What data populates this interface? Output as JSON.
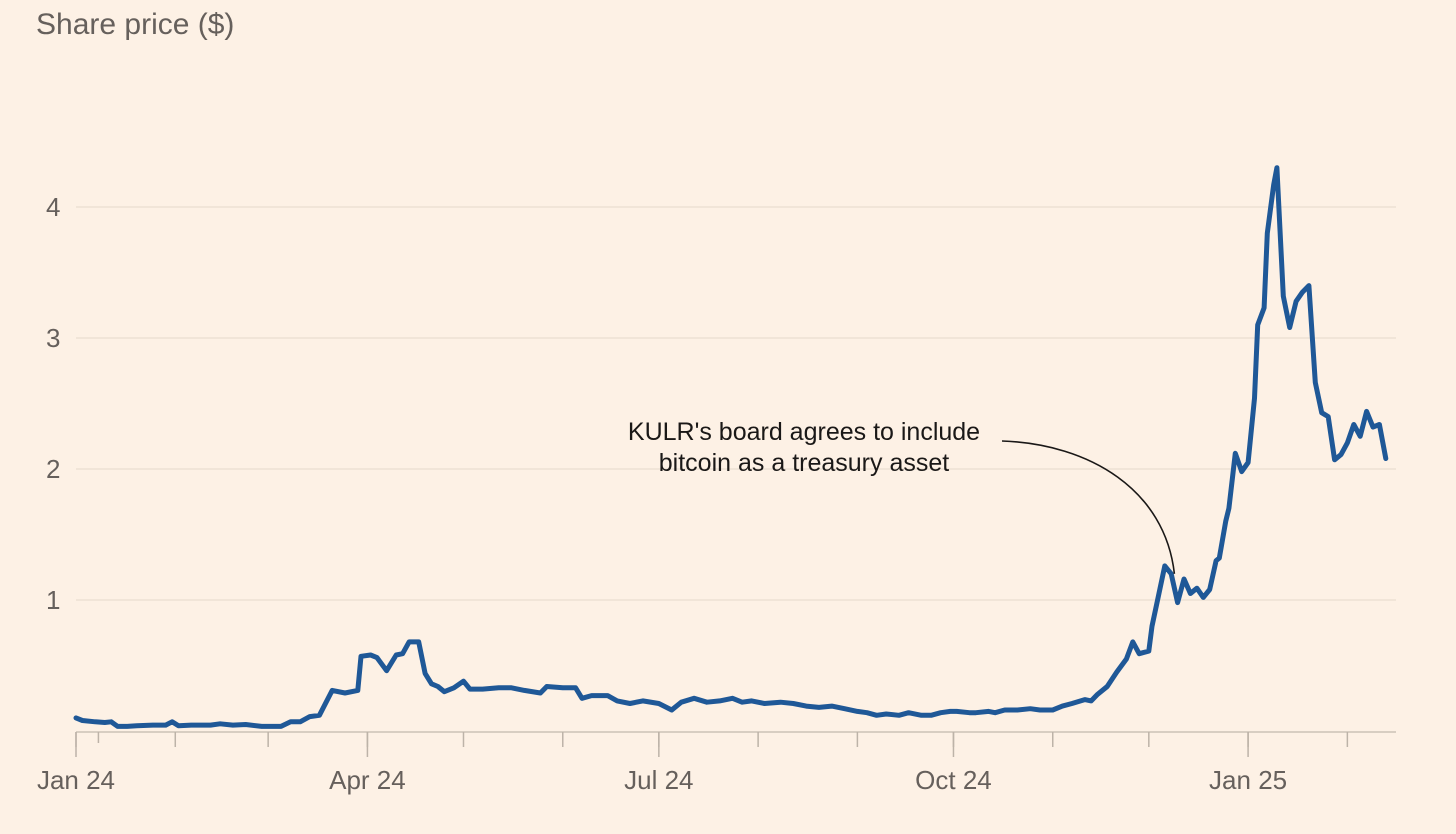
{
  "chart_data": {
    "type": "line",
    "title": "",
    "ylabel": "Share price ($)",
    "xlabel": "",
    "ylim": [
      0,
      4.75
    ],
    "yticks": [
      "1",
      "2",
      "3",
      "4"
    ],
    "ytick_values": [
      1,
      2,
      3,
      4
    ],
    "xlim": [
      "2024-01-01",
      "2025-02-14"
    ],
    "xtick_labels": [
      {
        "date": "2024-01-01",
        "label": "Jan 24"
      },
      {
        "date": "2024-04-01",
        "label": "Apr 24"
      },
      {
        "date": "2024-07-01",
        "label": "Jul 24"
      },
      {
        "date": "2024-10-01",
        "label": "Oct 24"
      },
      {
        "date": "2025-01-01",
        "label": "Jan 25"
      }
    ],
    "grid": true,
    "series": [
      {
        "name": "",
        "color": "#1f5897",
        "points": [
          [
            "2024-01-01",
            0.1
          ],
          [
            "2024-01-03",
            0.08
          ],
          [
            "2024-01-07",
            0.07
          ],
          [
            "2024-01-10",
            0.065
          ],
          [
            "2024-01-12",
            0.07
          ],
          [
            "2024-01-14",
            0.035
          ],
          [
            "2024-01-17",
            0.035
          ],
          [
            "2024-01-20",
            0.04
          ],
          [
            "2024-01-25",
            0.045
          ],
          [
            "2024-01-29",
            0.045
          ],
          [
            "2024-01-31",
            0.07
          ],
          [
            "2024-02-02",
            0.04
          ],
          [
            "2024-02-06",
            0.045
          ],
          [
            "2024-02-12",
            0.045
          ],
          [
            "2024-02-15",
            0.055
          ],
          [
            "2024-02-19",
            0.045
          ],
          [
            "2024-02-23",
            0.05
          ],
          [
            "2024-02-28",
            0.035
          ],
          [
            "2024-03-05",
            0.035
          ],
          [
            "2024-03-08",
            0.07
          ],
          [
            "2024-03-11",
            0.07
          ],
          [
            "2024-03-14",
            0.11
          ],
          [
            "2024-03-17",
            0.12
          ],
          [
            "2024-03-21",
            0.31
          ],
          [
            "2024-03-25",
            0.29
          ],
          [
            "2024-03-29",
            0.31
          ],
          [
            "2024-03-30",
            0.57
          ],
          [
            "2024-04-02",
            0.58
          ],
          [
            "2024-04-04",
            0.56
          ],
          [
            "2024-04-07",
            0.46
          ],
          [
            "2024-04-10",
            0.58
          ],
          [
            "2024-04-12",
            0.59
          ],
          [
            "2024-04-14",
            0.68
          ],
          [
            "2024-04-17",
            0.68
          ],
          [
            "2024-04-19",
            0.44
          ],
          [
            "2024-04-21",
            0.36
          ],
          [
            "2024-04-23",
            0.34
          ],
          [
            "2024-04-25",
            0.3
          ],
          [
            "2024-04-28",
            0.33
          ],
          [
            "2024-05-01",
            0.38
          ],
          [
            "2024-05-03",
            0.32
          ],
          [
            "2024-05-07",
            0.32
          ],
          [
            "2024-05-12",
            0.33
          ],
          [
            "2024-05-16",
            0.33
          ],
          [
            "2024-05-20",
            0.31
          ],
          [
            "2024-05-25",
            0.29
          ],
          [
            "2024-05-27",
            0.34
          ],
          [
            "2024-06-01",
            0.33
          ],
          [
            "2024-06-05",
            0.33
          ],
          [
            "2024-06-07",
            0.25
          ],
          [
            "2024-06-10",
            0.27
          ],
          [
            "2024-06-15",
            0.27
          ],
          [
            "2024-06-18",
            0.23
          ],
          [
            "2024-06-22",
            0.21
          ],
          [
            "2024-06-26",
            0.23
          ],
          [
            "2024-07-01",
            0.21
          ],
          [
            "2024-07-05",
            0.16
          ],
          [
            "2024-07-08",
            0.22
          ],
          [
            "2024-07-12",
            0.25
          ],
          [
            "2024-07-16",
            0.22
          ],
          [
            "2024-07-20",
            0.23
          ],
          [
            "2024-07-24",
            0.25
          ],
          [
            "2024-07-27",
            0.22
          ],
          [
            "2024-07-30",
            0.23
          ],
          [
            "2024-08-03",
            0.21
          ],
          [
            "2024-08-08",
            0.22
          ],
          [
            "2024-08-12",
            0.21
          ],
          [
            "2024-08-16",
            0.19
          ],
          [
            "2024-08-20",
            0.18
          ],
          [
            "2024-08-24",
            0.19
          ],
          [
            "2024-08-28",
            0.17
          ],
          [
            "2024-09-01",
            0.15
          ],
          [
            "2024-09-04",
            0.14
          ],
          [
            "2024-09-07",
            0.12
          ],
          [
            "2024-09-10",
            0.13
          ],
          [
            "2024-09-14",
            0.12
          ],
          [
            "2024-09-17",
            0.14
          ],
          [
            "2024-09-21",
            0.12
          ],
          [
            "2024-09-24",
            0.12
          ],
          [
            "2024-09-27",
            0.14
          ],
          [
            "2024-09-30",
            0.15
          ],
          [
            "2024-10-02",
            0.15
          ],
          [
            "2024-10-06",
            0.14
          ],
          [
            "2024-10-08",
            0.14
          ],
          [
            "2024-10-12",
            0.15
          ],
          [
            "2024-10-14",
            0.14
          ],
          [
            "2024-10-17",
            0.16
          ],
          [
            "2024-10-21",
            0.16
          ],
          [
            "2024-10-25",
            0.17
          ],
          [
            "2024-10-28",
            0.16
          ],
          [
            "2024-11-01",
            0.16
          ],
          [
            "2024-11-04",
            0.19
          ],
          [
            "2024-11-07",
            0.21
          ],
          [
            "2024-11-11",
            0.24
          ],
          [
            "2024-11-13",
            0.23
          ],
          [
            "2024-11-15",
            0.28
          ],
          [
            "2024-11-18",
            0.34
          ],
          [
            "2024-11-21",
            0.45
          ],
          [
            "2024-11-24",
            0.55
          ],
          [
            "2024-11-26",
            0.68
          ],
          [
            "2024-11-28",
            0.59
          ],
          [
            "2024-12-01",
            0.61
          ],
          [
            "2024-12-02",
            0.8
          ],
          [
            "2024-12-04",
            1.03
          ],
          [
            "2024-12-06",
            1.26
          ],
          [
            "2024-12-08",
            1.2
          ],
          [
            "2024-12-10",
            0.98
          ],
          [
            "2024-12-12",
            1.16
          ],
          [
            "2024-12-14",
            1.05
          ],
          [
            "2024-12-16",
            1.09
          ],
          [
            "2024-12-18",
            1.02
          ],
          [
            "2024-12-20",
            1.08
          ],
          [
            "2024-12-22",
            1.3
          ],
          [
            "2024-12-23",
            1.32
          ],
          [
            "2024-12-25",
            1.6
          ],
          [
            "2024-12-26",
            1.7
          ],
          [
            "2024-12-28",
            2.12
          ],
          [
            "2024-12-30",
            1.98
          ],
          [
            "2025-01-01",
            2.05
          ],
          [
            "2025-01-03",
            2.54
          ],
          [
            "2025-01-04",
            3.1
          ],
          [
            "2025-01-06",
            3.23
          ],
          [
            "2025-01-07",
            3.8
          ],
          [
            "2025-01-09",
            4.17
          ],
          [
            "2025-01-10",
            4.3
          ],
          [
            "2025-01-12",
            3.32
          ],
          [
            "2025-01-14",
            3.08
          ],
          [
            "2025-01-16",
            3.28
          ],
          [
            "2025-01-18",
            3.35
          ],
          [
            "2025-01-20",
            3.4
          ],
          [
            "2025-01-22",
            2.66
          ],
          [
            "2025-01-24",
            2.43
          ],
          [
            "2025-01-26",
            2.4
          ],
          [
            "2025-01-28",
            2.07
          ],
          [
            "2025-01-30",
            2.11
          ],
          [
            "2025-02-01",
            2.2
          ],
          [
            "2025-02-03",
            2.34
          ],
          [
            "2025-02-05",
            2.25
          ],
          [
            "2025-02-07",
            2.44
          ],
          [
            "2025-02-09",
            2.32
          ],
          [
            "2025-02-11",
            2.34
          ],
          [
            "2025-02-13",
            2.08
          ]
        ]
      }
    ],
    "annotations": [
      {
        "text_lines": [
          "KULR's board agrees to include",
          "bitcoin as a treasury asset"
        ],
        "date": "2024-12-09",
        "value": 1.2
      }
    ]
  }
}
